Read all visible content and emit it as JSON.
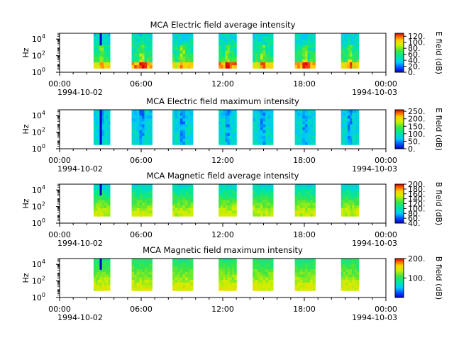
{
  "chart_data": [
    {
      "type": "heatmap",
      "title": "MCA  Electric field average intensity",
      "ylabel": "Hz",
      "colorbar_label": "E field (dB)",
      "colorbar_range": [
        0,
        130
      ],
      "colorbar_ticks": [
        "0.",
        "20.",
        "40.",
        "60.",
        "80.",
        "100.",
        "120."
      ],
      "style": "avg-e"
    },
    {
      "type": "heatmap",
      "title": "MCA  Electric field maximum intensity",
      "ylabel": "Hz",
      "colorbar_label": "E field (dB)",
      "colorbar_range": [
        0,
        260
      ],
      "colorbar_ticks": [
        "0.",
        "50.",
        "100.",
        "150.",
        "200.",
        "250."
      ],
      "style": "max-e"
    },
    {
      "type": "heatmap",
      "title": "MCA  Magnetic field average intensity",
      "ylabel": "Hz",
      "colorbar_label": "B field (dB)",
      "colorbar_range": [
        40,
        200
      ],
      "colorbar_ticks": [
        "40.",
        "60.",
        "80.",
        "100.",
        "120.",
        "140.",
        "160.",
        "180.",
        "200."
      ],
      "style": "avg-b"
    },
    {
      "type": "heatmap",
      "title": "MCA  Magnetic field maximum intensity",
      "ylabel": "Hz",
      "colorbar_label": "B field (dB)",
      "colorbar_range": [
        0,
        200
      ],
      "colorbar_ticks": [
        "100.",
        "200."
      ],
      "style": "max-b"
    }
  ],
  "shared": {
    "x_ticks": [
      "00:00",
      "06:00",
      "12:00",
      "18:00",
      "00:00"
    ],
    "x_dates": [
      "1994-10-02",
      "1994-10-03"
    ],
    "y_ticks": [
      {
        "base": "10",
        "exp": "0"
      },
      {
        "base": "10",
        "exp": "2"
      },
      {
        "base": "10",
        "exp": "4"
      }
    ],
    "x_range_hours": [
      0,
      24
    ],
    "y_range_log10": [
      0,
      4.7
    ],
    "passes_hours": [
      [
        2.5,
        3.7
      ],
      [
        5.3,
        6.8
      ],
      [
        8.3,
        9.8
      ],
      [
        11.7,
        13.0
      ],
      [
        14.2,
        15.7
      ],
      [
        17.3,
        18.8
      ],
      [
        20.7,
        22.0
      ]
    ]
  }
}
